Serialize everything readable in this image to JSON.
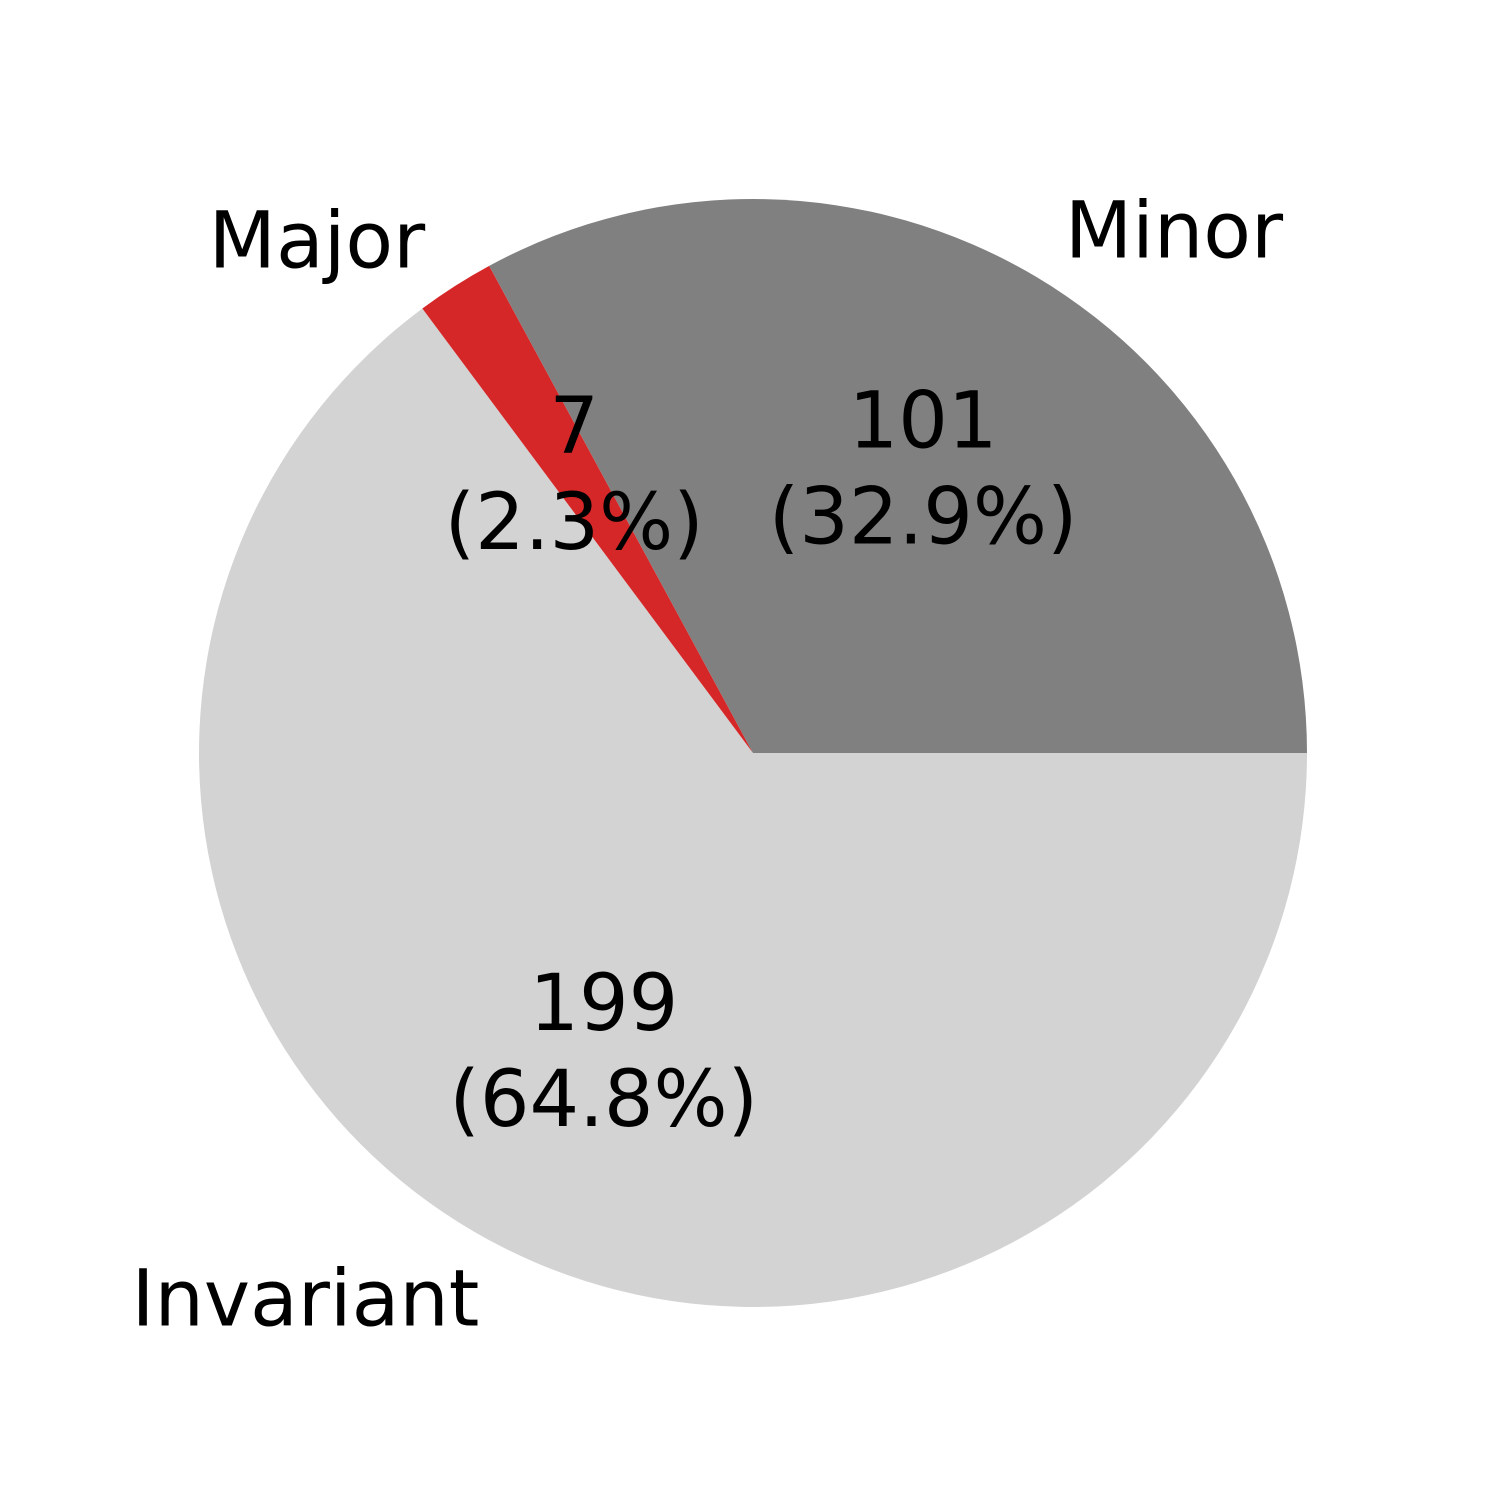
{
  "chart_data": {
    "type": "pie",
    "title": "",
    "start_angle_deg": 0,
    "direction": "clockwise",
    "slices": [
      {
        "label": "Invariant",
        "value": 199,
        "percent": "64.8%",
        "color": "#d3d3d3"
      },
      {
        "label": "Major",
        "value": 7,
        "percent": "2.3%",
        "color": "#d62728"
      },
      {
        "label": "Minor",
        "value": 101,
        "percent": "32.9%",
        "color": "#808080"
      }
    ]
  }
}
